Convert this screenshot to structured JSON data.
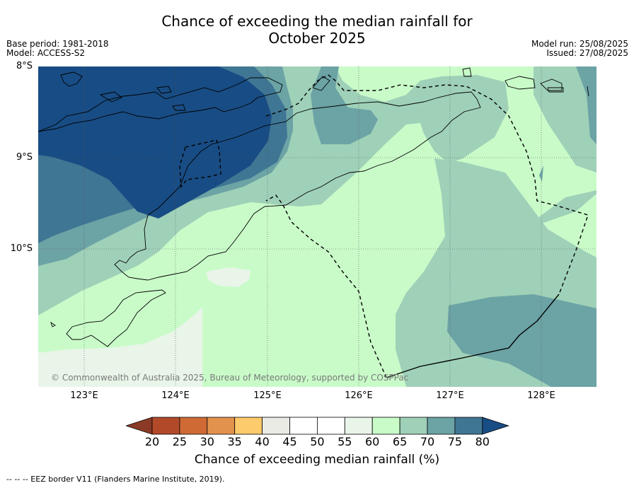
{
  "title_line1": "Chance of exceeding the median rainfall for",
  "title_line2": "October 2025",
  "meta_left": {
    "base_period": "Base period: 1981-2018",
    "model": "Model: ACCESS-S2"
  },
  "meta_right": {
    "model_run": "Model run: 25/08/2025",
    "issued": "Issued: 27/08/2025"
  },
  "lat_labels": [
    "8°S",
    "9°S",
    "10°S"
  ],
  "lon_labels": [
    "123°E",
    "124°E",
    "125°E",
    "126°E",
    "127°E",
    "128°E"
  ],
  "copyright": "© Commonwealth of Australia 2025, Bureau of Meteorology, supported by COSPPac",
  "colorbar": {
    "label": "Chance of exceeding median rainfall (%)",
    "ticks": [
      "20",
      "25",
      "30",
      "35",
      "40",
      "45",
      "50",
      "55",
      "60",
      "65",
      "70",
      "75",
      "80"
    ],
    "colors": [
      "#8b3a26",
      "#b24a2a",
      "#cf6a35",
      "#e3924d",
      "#fdca6c",
      "#ebebe6",
      "#ffffff",
      "#ffffff",
      "#e9f5e9",
      "#c9fbc9",
      "#9fd1b8",
      "#6ca3a5",
      "#3f7694",
      "#184c84"
    ]
  },
  "footer": "--  --  -- EEZ border V11 (Flanders Marine Institute, 2019).",
  "map_data": {
    "extent": {
      "lon": [
        122.5,
        128.6
      ],
      "lat": [
        -8.0,
        -11.5
      ]
    },
    "category_colors": {
      "55-60": "#e9f5e9",
      "60-65": "#c9fbc9",
      "65-70": "#9fd1b8",
      "70-75": "#6ca3a5",
      "75-80": "#3f7694",
      "80+": "#184c84"
    }
  }
}
